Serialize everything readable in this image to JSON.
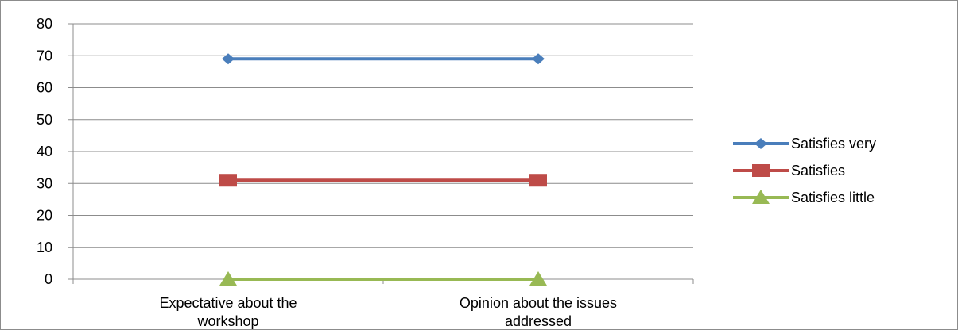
{
  "chart_data": {
    "type": "line",
    "categories": [
      "Expectative about the workshop",
      "Opinion about the issues addressed"
    ],
    "category_label_lines": [
      [
        "Expectative about the",
        "workshop"
      ],
      [
        "Opinion about the issues",
        "addressed"
      ]
    ],
    "series": [
      {
        "name": "Satisfies very",
        "values": [
          69,
          69
        ],
        "color": "#4a7ebb",
        "marker": "diamond"
      },
      {
        "name": "Satisfies",
        "values": [
          31,
          31
        ],
        "color": "#be4b48",
        "marker": "square"
      },
      {
        "name": "Satisfies little",
        "values": [
          0,
          0
        ],
        "color": "#98b954",
        "marker": "triangle"
      }
    ],
    "ylim": [
      0,
      80
    ],
    "yticks": [
      0,
      10,
      20,
      30,
      40,
      50,
      60,
      70,
      80
    ],
    "grid": true,
    "legend_position": "right",
    "title": "",
    "xlabel": "",
    "ylabel": ""
  }
}
